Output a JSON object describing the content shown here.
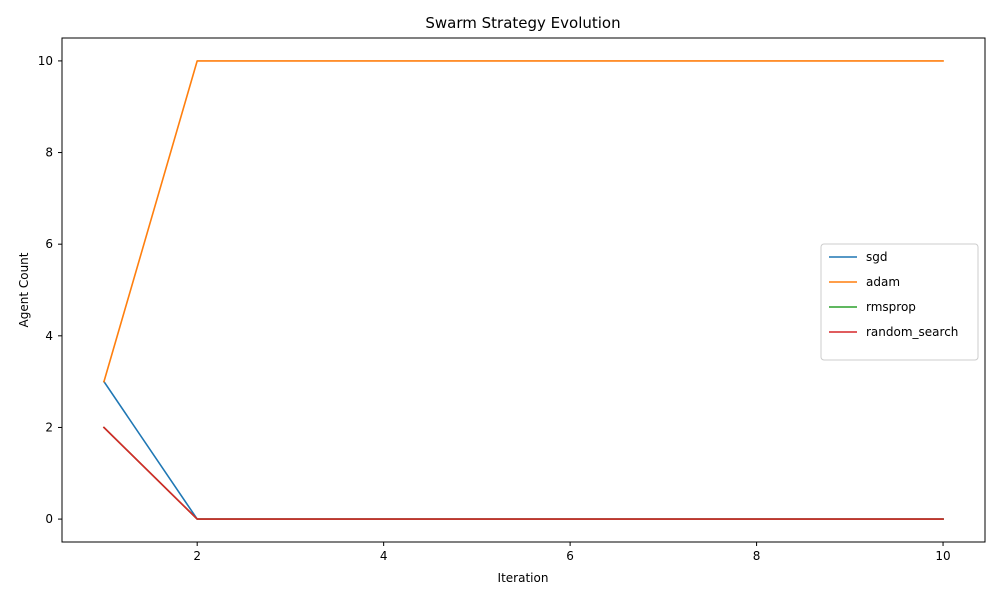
{
  "chart_data": {
    "type": "line",
    "title": "Swarm Strategy Evolution",
    "xlabel": "Iteration",
    "ylabel": "Agent Count",
    "x": [
      1,
      2,
      3,
      4,
      5,
      6,
      7,
      8,
      9,
      10
    ],
    "xlim": [
      0.55,
      10.45
    ],
    "ylim": [
      -0.5,
      10.5
    ],
    "xticks": [
      2,
      4,
      6,
      8,
      10
    ],
    "yticks": [
      0,
      2,
      4,
      6,
      8,
      10
    ],
    "grid": false,
    "legend_position": "center-right",
    "series": [
      {
        "name": "sgd",
        "color": "#1f77b4",
        "values": [
          3,
          0,
          0,
          0,
          0,
          0,
          0,
          0,
          0,
          0
        ]
      },
      {
        "name": "adam",
        "color": "#ff7f0e",
        "values": [
          3,
          10,
          10,
          10,
          10,
          10,
          10,
          10,
          10,
          10
        ]
      },
      {
        "name": "rmsprop",
        "color": "#2ca02c",
        "values": [
          2,
          0,
          0,
          0,
          0,
          0,
          0,
          0,
          0,
          0
        ]
      },
      {
        "name": "random_search",
        "color": "#d62728",
        "values": [
          2,
          0,
          0,
          0,
          0,
          0,
          0,
          0,
          0,
          0
        ]
      }
    ]
  }
}
